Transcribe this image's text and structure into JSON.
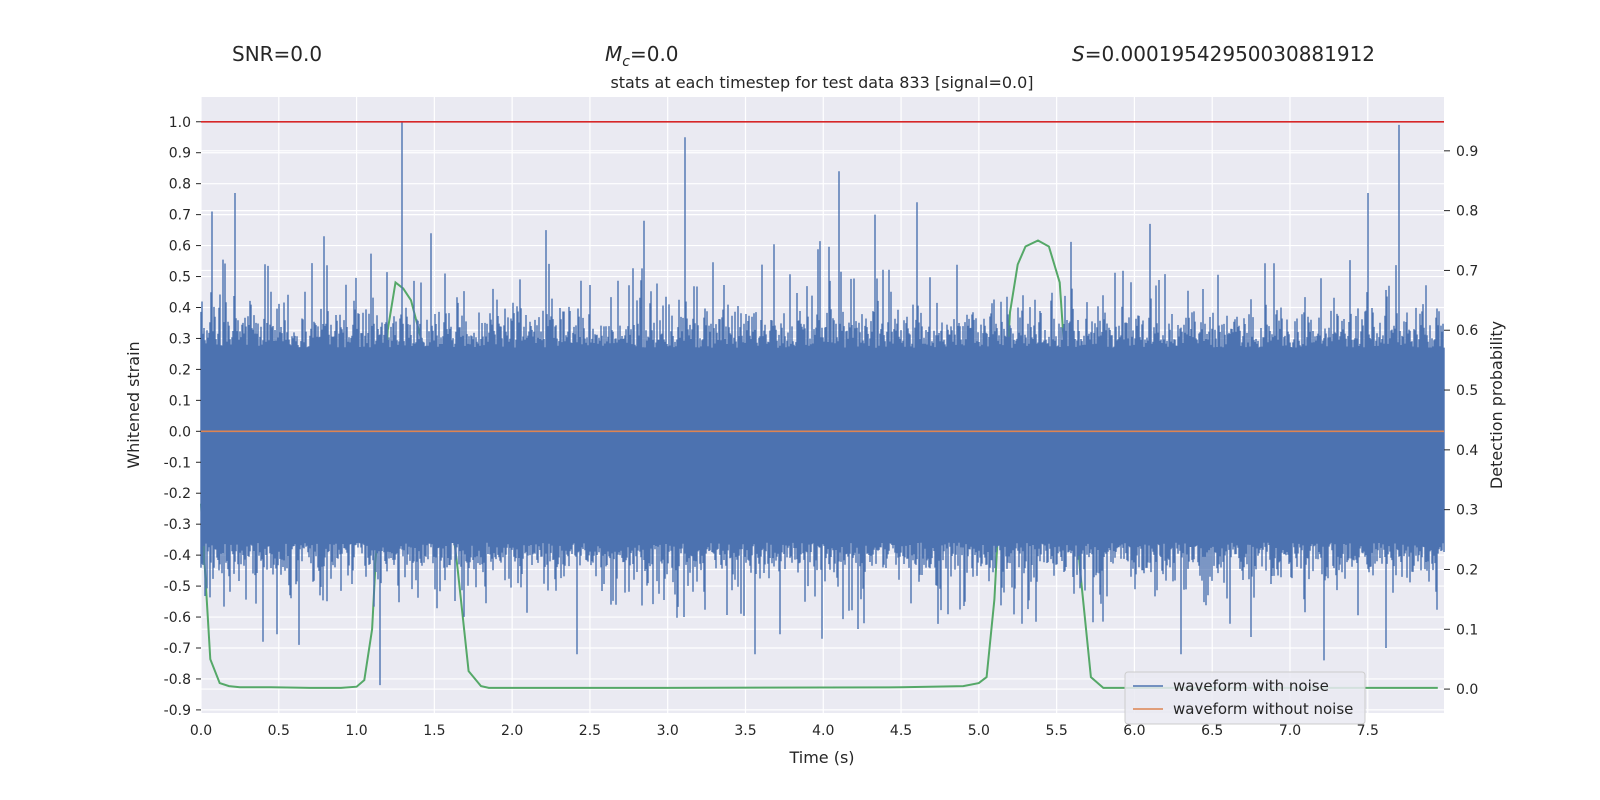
{
  "header": {
    "snr": "SNR=0.0",
    "mc_symbol": "M",
    "mc_sub": "c",
    "mc_value": "=0.0",
    "s_symbol": "S",
    "s_value": "=0.00019542950030881912"
  },
  "chart_data": {
    "type": "line",
    "title": "stats at each timestep for test data 833 [signal=0.0]",
    "xlabel": "Time (s)",
    "ylabel": "Whitened strain",
    "y2label": "Detection probability",
    "xlim": [
      0.0,
      7.99
    ],
    "ylim": [
      -0.91,
      1.08
    ],
    "y2lim": [
      -0.04,
      0.99
    ],
    "xticks": [
      "0.0",
      "0.5",
      "1.0",
      "1.5",
      "2.0",
      "2.5",
      "3.0",
      "3.5",
      "4.0",
      "4.5",
      "5.0",
      "5.5",
      "6.0",
      "6.5",
      "7.0",
      "7.5"
    ],
    "yticks": [
      "-0.9",
      "-0.8",
      "-0.7",
      "-0.6",
      "-0.5",
      "-0.4",
      "-0.3",
      "-0.2",
      "-0.1",
      "0.0",
      "0.1",
      "0.2",
      "0.3",
      "0.4",
      "0.5",
      "0.6",
      "0.7",
      "0.8",
      "0.9",
      "1.0"
    ],
    "y2ticks": [
      "0.0",
      "0.1",
      "0.2",
      "0.3",
      "0.4",
      "0.5",
      "0.6",
      "0.7",
      "0.8",
      "0.9"
    ],
    "grid": true,
    "legend_position": "bottom-right",
    "hline": {
      "y": 1.0,
      "color": "#d62728"
    },
    "series": [
      {
        "name": "waveform with noise",
        "color": "#4c72b0",
        "kind": "noise",
        "core_amplitude": [
          -0.36,
          0.27
        ],
        "peaks": [
          {
            "x": 0.07,
            "y": 0.71
          },
          {
            "x": 0.22,
            "y": 0.77
          },
          {
            "x": 0.41,
            "y": 0.54
          },
          {
            "x": 0.79,
            "y": 0.63
          },
          {
            "x": 1.15,
            "y": -0.82
          },
          {
            "x": 1.29,
            "y": 1.0
          },
          {
            "x": 1.48,
            "y": 0.64
          },
          {
            "x": 2.22,
            "y": 0.65
          },
          {
            "x": 2.85,
            "y": 0.68
          },
          {
            "x": 3.11,
            "y": 0.95
          },
          {
            "x": 4.1,
            "y": 0.84
          },
          {
            "x": 4.33,
            "y": 0.7
          },
          {
            "x": 4.6,
            "y": 0.74
          },
          {
            "x": 6.1,
            "y": 0.67
          },
          {
            "x": 6.3,
            "y": -0.72
          },
          {
            "x": 7.22,
            "y": -0.74
          },
          {
            "x": 7.5,
            "y": 0.77
          },
          {
            "x": 7.7,
            "y": 0.99
          },
          {
            "x": 7.62,
            "y": -0.7
          },
          {
            "x": 3.56,
            "y": -0.72
          },
          {
            "x": 2.42,
            "y": -0.72
          },
          {
            "x": 0.4,
            "y": -0.68
          },
          {
            "x": 0.63,
            "y": -0.69
          }
        ]
      },
      {
        "name": "waveform without noise",
        "color": "#dd8452",
        "x": [
          0.0,
          7.99
        ],
        "y": [
          0.0,
          0.0
        ]
      },
      {
        "name": "",
        "color": "#55a868",
        "axis": "right",
        "x": [
          0.0,
          0.06,
          0.12,
          0.18,
          0.25,
          0.45,
          0.7,
          0.9,
          1.0,
          1.05,
          1.1,
          1.15,
          1.2,
          1.25,
          1.3,
          1.35,
          1.45,
          1.55,
          1.65,
          1.72,
          1.8,
          1.85,
          2.0,
          3.0,
          4.5,
          4.9,
          5.0,
          5.05,
          5.1,
          5.15,
          5.2,
          5.25,
          5.3,
          5.38,
          5.45,
          5.52,
          5.58,
          5.65,
          5.72,
          5.8,
          7.95
        ],
        "y": [
          0.31,
          0.05,
          0.01,
          0.005,
          0.003,
          0.003,
          0.002,
          0.002,
          0.004,
          0.015,
          0.1,
          0.35,
          0.6,
          0.68,
          0.67,
          0.65,
          0.55,
          0.42,
          0.2,
          0.03,
          0.005,
          0.002,
          0.002,
          0.002,
          0.003,
          0.005,
          0.01,
          0.02,
          0.15,
          0.4,
          0.63,
          0.71,
          0.74,
          0.75,
          0.74,
          0.68,
          0.45,
          0.2,
          0.02,
          0.002,
          0.002
        ]
      }
    ]
  }
}
